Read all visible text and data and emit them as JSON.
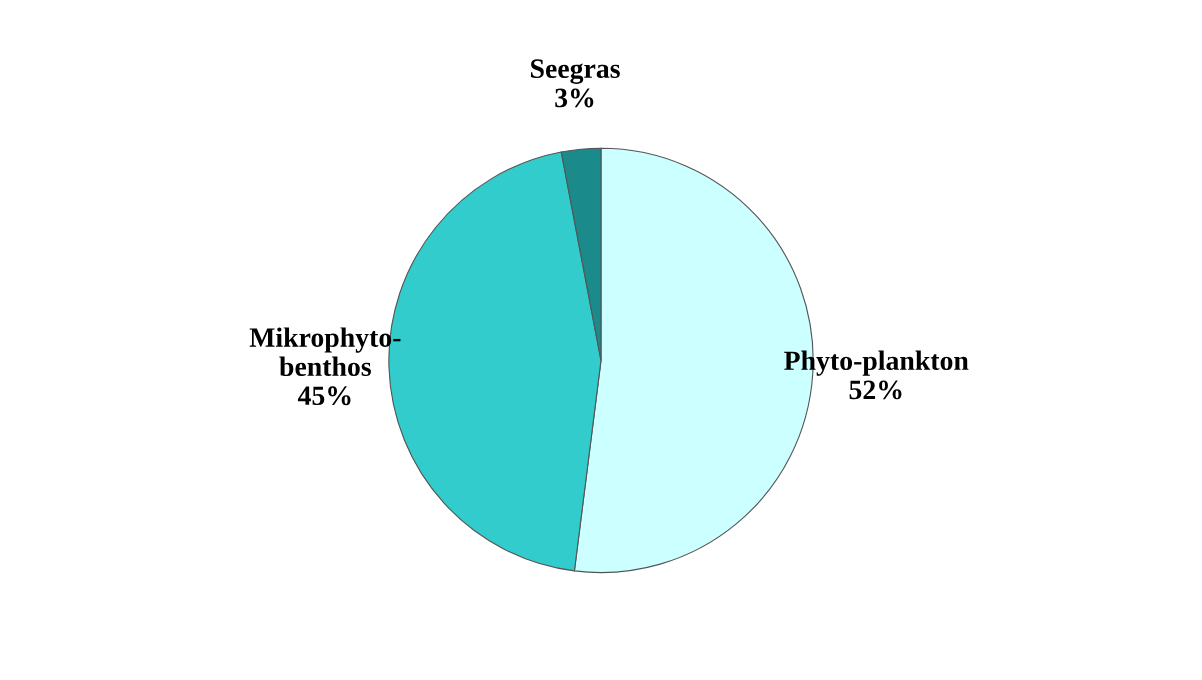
{
  "chart_data": {
    "type": "pie",
    "categories": [
      "Phyto-plankton",
      "Mikrophyto-\nbenthos",
      "Seegras"
    ],
    "values": [
      52,
      45,
      3
    ],
    "value_labels": [
      "52%",
      "45%",
      "3%"
    ],
    "colors": [
      "#ccffff",
      "#33cccc",
      "#1a8a8a"
    ]
  }
}
